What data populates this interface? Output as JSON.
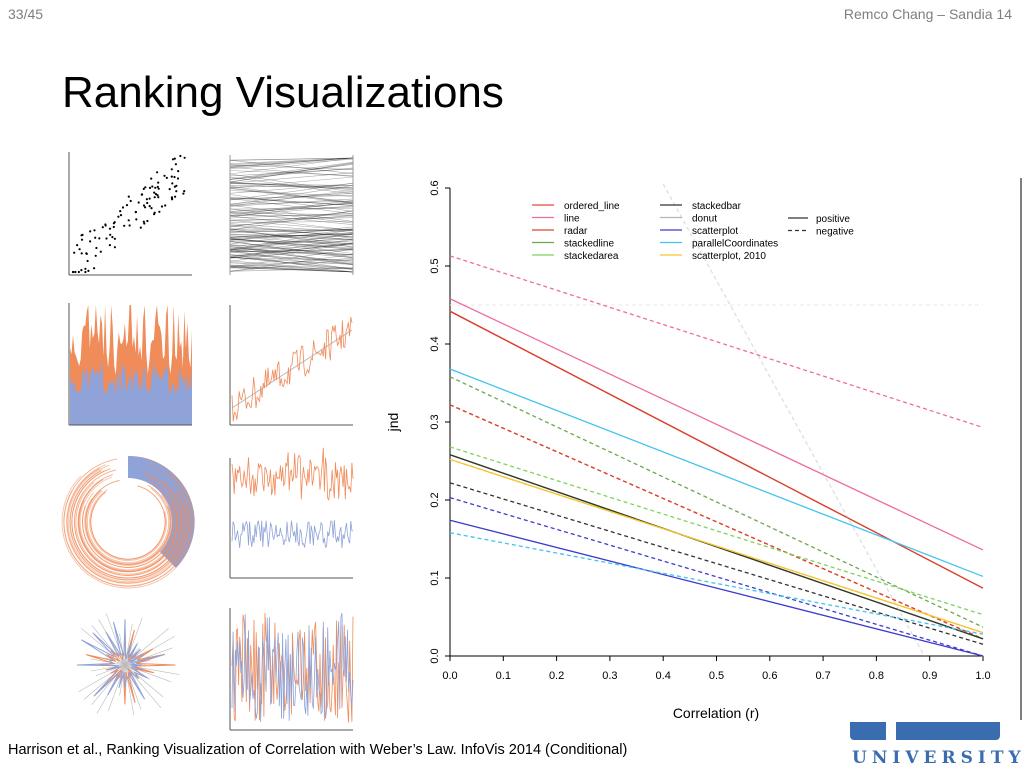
{
  "slide": {
    "number": "33/45",
    "header_right": "Remco Chang – Sandia 14",
    "title": "Ranking Visualizations"
  },
  "citation": "Harrison et al., Ranking Visualization of Correlation with Weber’s Law. InfoVis 2014 (Conditional)",
  "logo": {
    "name": "Tufts University",
    "text": "UNIVERSITY"
  },
  "colors": {
    "orange": "#f08b5a",
    "blue": "#8fa3d8",
    "grey_text": "#7f7f7f",
    "logo_blue": "#3a6db0"
  },
  "thumbnails": [
    {
      "name": "scatterplot"
    },
    {
      "name": "parallel-coordinates"
    },
    {
      "name": "stacked-area"
    },
    {
      "name": "line"
    },
    {
      "name": "donut"
    },
    {
      "name": "stacked-line"
    },
    {
      "name": "radar"
    },
    {
      "name": "ordered-line"
    }
  ],
  "chart_data": {
    "type": "line",
    "xlabel": "Correlation (r)",
    "ylabel": "jnd",
    "xlim": [
      0,
      1
    ],
    "ylim": [
      0,
      0.6
    ],
    "xticks": [
      "0.0",
      "0.1",
      "0.2",
      "0.3",
      "0.4",
      "0.5",
      "0.6",
      "0.7",
      "0.8",
      "0.9",
      "1.0"
    ],
    "yticks": [
      "0.0",
      "0.1",
      "0.2",
      "0.3",
      "0.4",
      "0.5",
      "0.6"
    ],
    "legend_title_styles": [
      "positive",
      "negative"
    ],
    "series": [
      {
        "name": "ordered_line",
        "color": "#e8473c",
        "positive": [
          0.442,
          0.087
        ],
        "negative": [
          0.322,
          0.022
        ]
      },
      {
        "name": "line",
        "color": "#f06aa3",
        "positive": [
          0.458,
          0.136
        ],
        "negative": [
          0.513,
          0.293
        ]
      },
      {
        "name": "radar",
        "color": "#d9432e",
        "positive": [
          0.442,
          0.087
        ],
        "negative": [
          0.322,
          0.022
        ]
      },
      {
        "name": "stackedline",
        "color": "#6aa84f",
        "positive": [
          0.258,
          0.022
        ],
        "negative": [
          0.358,
          0.037
        ]
      },
      {
        "name": "stackedarea",
        "color": "#7fd35a",
        "positive": [
          0.258,
          0.022
        ],
        "negative": [
          0.268,
          0.053
        ]
      },
      {
        "name": "stackedbar",
        "color": "#333333",
        "positive": [
          0.258,
          0.022
        ],
        "negative": [
          0.222,
          0.015
        ]
      },
      {
        "name": "donut",
        "color": "#b5b5b5",
        "positive": [
          0.605,
          0.345
        ],
        "negative": [
          0.605,
          0.0
        ]
      },
      {
        "name": "scatterplot",
        "color": "#3c3ccd",
        "positive": [
          0.174,
          0.0
        ],
        "negative": [
          0.203,
          0.0
        ]
      },
      {
        "name": "parallelCoordinates",
        "color": "#40c4f0",
        "positive": [
          0.368,
          0.102
        ],
        "negative": [
          0.158,
          0.028
        ]
      },
      {
        "name": "scatterplot, 2010",
        "color": "#f5c330",
        "positive": [
          0.252,
          0.03
        ],
        "negative": [
          0.252,
          0.03
        ]
      }
    ]
  }
}
